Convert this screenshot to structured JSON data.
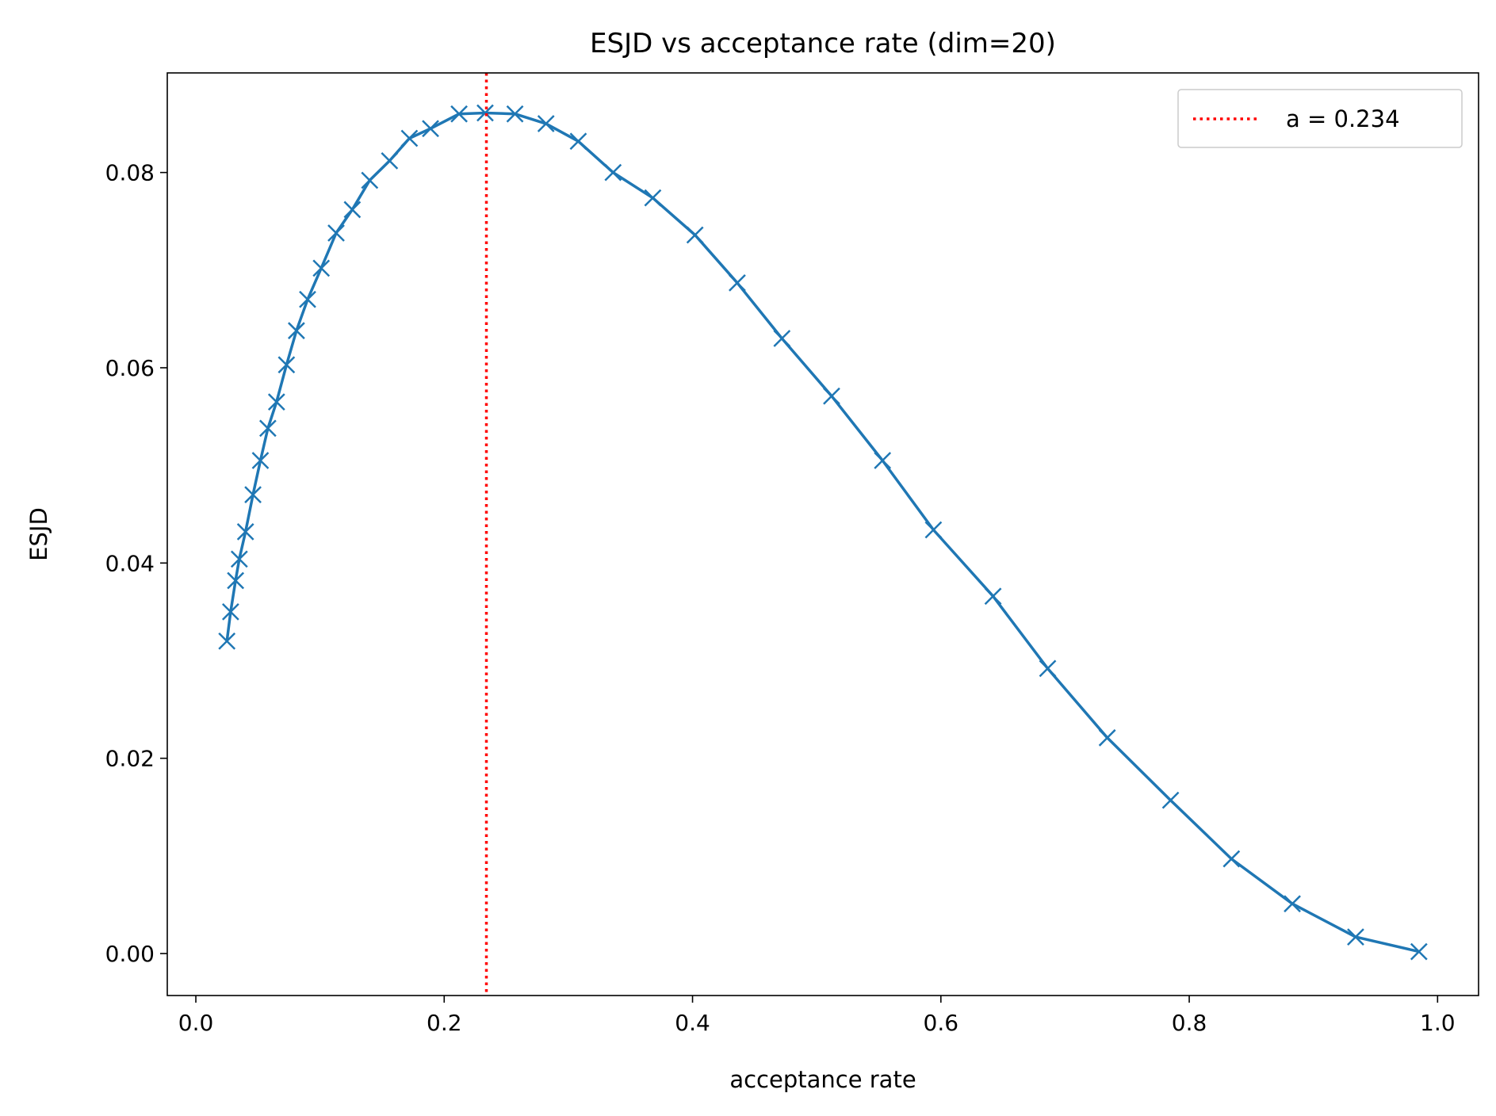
{
  "chart_data": {
    "type": "line",
    "title": "ESJD vs acceptance rate (dim=20)",
    "xlabel": "acceptance rate",
    "ylabel": "ESJD",
    "xlim": [
      -0.023,
      1.033
    ],
    "ylim": [
      -0.0043,
      0.0902
    ],
    "xticks": [
      0.0,
      0.2,
      0.4,
      0.6,
      0.8,
      1.0
    ],
    "xtick_labels": [
      "0.0",
      "0.2",
      "0.4",
      "0.6",
      "0.8",
      "1.0"
    ],
    "yticks": [
      0.0,
      0.02,
      0.04,
      0.06,
      0.08
    ],
    "ytick_labels": [
      "0.00",
      "0.02",
      "0.04",
      "0.06",
      "0.08"
    ],
    "grid": false,
    "legend_position": "top-right",
    "series": [
      {
        "color": "#1f77b4",
        "marker": "x",
        "x": [
          0.025,
          0.028,
          0.032,
          0.035,
          0.04,
          0.046,
          0.052,
          0.058,
          0.065,
          0.073,
          0.081,
          0.09,
          0.101,
          0.113,
          0.126,
          0.14,
          0.156,
          0.172,
          0.189,
          0.212,
          0.233,
          0.257,
          0.282,
          0.308,
          0.336,
          0.368,
          0.402,
          0.436,
          0.472,
          0.512,
          0.553,
          0.594,
          0.642,
          0.686,
          0.734,
          0.785,
          0.834,
          0.883,
          0.934,
          0.985
        ],
        "y": [
          0.032,
          0.035,
          0.0382,
          0.0404,
          0.0432,
          0.047,
          0.0505,
          0.0538,
          0.0565,
          0.0603,
          0.0638,
          0.067,
          0.0702,
          0.0738,
          0.0762,
          0.0792,
          0.0812,
          0.0835,
          0.0845,
          0.086,
          0.0861,
          0.086,
          0.085,
          0.0832,
          0.08,
          0.0774,
          0.0736,
          0.0687,
          0.063,
          0.0571,
          0.0505,
          0.0434,
          0.0366,
          0.0292,
          0.0221,
          0.0157,
          0.0097,
          0.0051,
          0.0017,
          0.0002
        ]
      }
    ],
    "reference_line": {
      "x": 0.234,
      "label": "a = 0.234",
      "color": "#ff0000",
      "style": "dotted"
    }
  }
}
